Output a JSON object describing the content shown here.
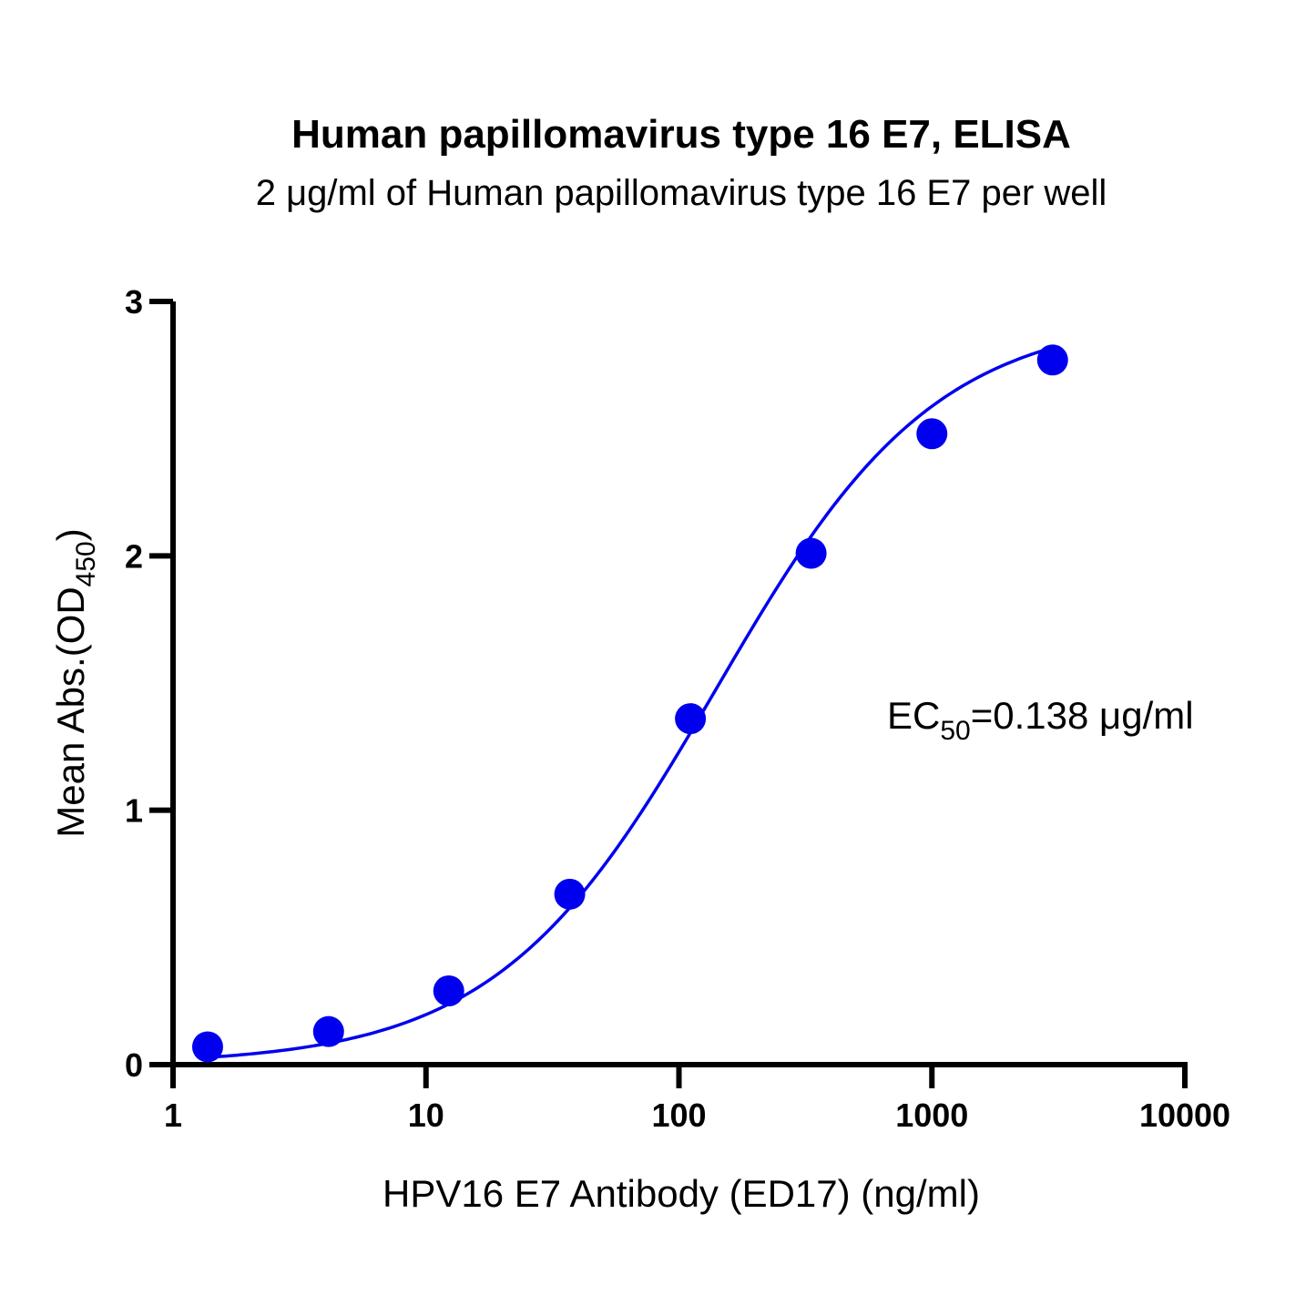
{
  "chart_data": {
    "type": "scatter",
    "title": "Human papillomavirus type 16 E7, ELISA",
    "subtitle": "2 μg/ml of Human papillomavirus type 16 E7 per well",
    "xlabel": "HPV16 E7 Antibody (ED17) (ng/ml)",
    "ylabel_main": "Mean Abs.(OD",
    "ylabel_sub": "450",
    "ylabel_end": ")",
    "x_scale": "log",
    "xlim": [
      1,
      10000
    ],
    "ylim": [
      0,
      3
    ],
    "x_ticks": [
      {
        "value": 1,
        "label": "1"
      },
      {
        "value": 10,
        "label": "10"
      },
      {
        "value": 100,
        "label": "100"
      },
      {
        "value": 1000,
        "label": "1000"
      },
      {
        "value": 10000,
        "label": "10000"
      }
    ],
    "y_ticks": [
      {
        "value": 0,
        "label": "0"
      },
      {
        "value": 1,
        "label": "1"
      },
      {
        "value": 2,
        "label": "2"
      },
      {
        "value": 3,
        "label": "3"
      }
    ],
    "series": [
      {
        "x": [
          1.37,
          4.12,
          12.3,
          37.0,
          111,
          333,
          1000,
          3000
        ],
        "y": [
          0.07,
          0.13,
          0.29,
          0.67,
          1.36,
          2.01,
          2.48,
          2.77
        ],
        "color": "#0000ee",
        "fit": "4PL sigmoidal curve"
      }
    ],
    "annotation": {
      "text_main": "EC",
      "text_sub": "50",
      "text_end": "=0.138 μg/ml"
    },
    "grid": false,
    "legend": "none"
  }
}
